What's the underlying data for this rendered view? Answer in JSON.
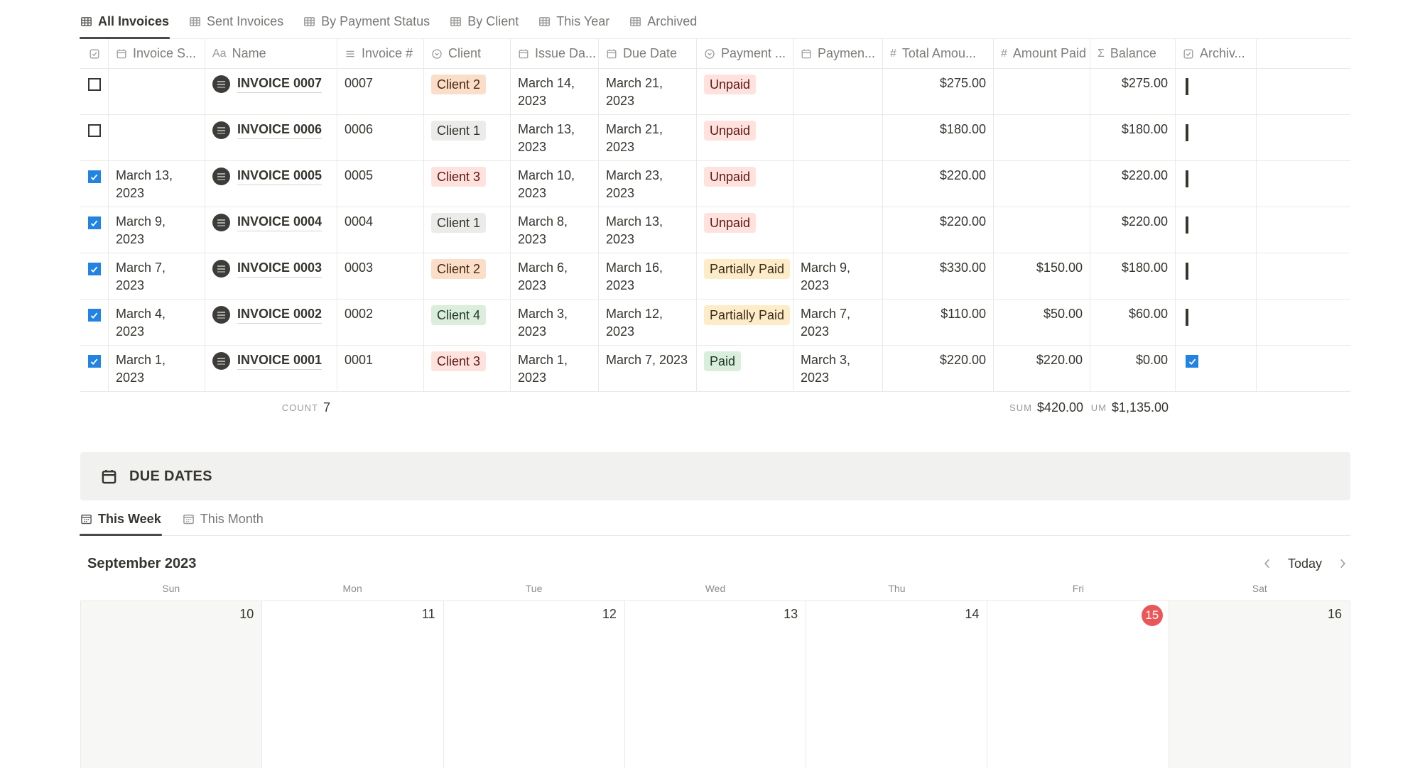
{
  "view_tabs": [
    {
      "label": "All Invoices",
      "active": true
    },
    {
      "label": "Sent Invoices",
      "active": false
    },
    {
      "label": "By Payment Status",
      "active": false
    },
    {
      "label": "By Client",
      "active": false
    },
    {
      "label": "This Year",
      "active": false
    },
    {
      "label": "Archived",
      "active": false
    }
  ],
  "table": {
    "header": {
      "invoice_sent": "Invoice S...",
      "name": "Name",
      "invoice_no": "Invoice #",
      "client": "Client",
      "issue_date": "Issue Da...",
      "due_date": "Due Date",
      "payment_status": "Payment ...",
      "payment_date": "Paymen...",
      "total": "Total Amou...",
      "amount_paid": "Amount Paid",
      "balance": "Balance",
      "archived": "Archiv..."
    },
    "rows": [
      {
        "selected": false,
        "invoice_sent": "",
        "name": "INVOICE 0007",
        "invoice_no": "0007",
        "client": "Client 2",
        "client_color": "orange",
        "issue_date": "March 14, 2023",
        "due_date": "March 21, 2023",
        "payment_status": "Unpaid",
        "status_color": "red",
        "payment_date": "",
        "total": "$275.00",
        "amount_paid": "",
        "balance": "$275.00",
        "archived": false
      },
      {
        "selected": false,
        "invoice_sent": "",
        "name": "INVOICE 0006",
        "invoice_no": "0006",
        "client": "Client 1",
        "client_color": "gray",
        "issue_date": "March 13, 2023",
        "due_date": "March 21, 2023",
        "payment_status": "Unpaid",
        "status_color": "red",
        "payment_date": "",
        "total": "$180.00",
        "amount_paid": "",
        "balance": "$180.00",
        "archived": false
      },
      {
        "selected": true,
        "invoice_sent": "March 13, 2023",
        "name": "INVOICE 0005",
        "invoice_no": "0005",
        "client": "Client 3",
        "client_color": "red",
        "issue_date": "March 10, 2023",
        "due_date": "March 23, 2023",
        "payment_status": "Unpaid",
        "status_color": "red",
        "payment_date": "",
        "total": "$220.00",
        "amount_paid": "",
        "balance": "$220.00",
        "archived": false
      },
      {
        "selected": true,
        "invoice_sent": "March 9, 2023",
        "name": "INVOICE 0004",
        "invoice_no": "0004",
        "client": "Client 1",
        "client_color": "gray",
        "issue_date": "March 8, 2023",
        "due_date": "March 13, 2023",
        "payment_status": "Unpaid",
        "status_color": "red",
        "payment_date": "",
        "total": "$220.00",
        "amount_paid": "",
        "balance": "$220.00",
        "archived": false
      },
      {
        "selected": true,
        "invoice_sent": "March 7, 2023",
        "name": "INVOICE 0003",
        "invoice_no": "0003",
        "client": "Client 2",
        "client_color": "orange",
        "issue_date": "March 6, 2023",
        "due_date": "March 16, 2023",
        "payment_status": "Partially Paid",
        "status_color": "yellow",
        "payment_date": "March 9, 2023",
        "total": "$330.00",
        "amount_paid": "$150.00",
        "balance": "$180.00",
        "archived": false
      },
      {
        "selected": true,
        "invoice_sent": "March 4, 2023",
        "name": "INVOICE 0002",
        "invoice_no": "0002",
        "client": "Client 4",
        "client_color": "green",
        "issue_date": "March 3, 2023",
        "due_date": "March 12, 2023",
        "payment_status": "Partially Paid",
        "status_color": "yellow",
        "payment_date": "March 7, 2023",
        "total": "$110.00",
        "amount_paid": "$50.00",
        "balance": "$60.00",
        "archived": false
      },
      {
        "selected": true,
        "invoice_sent": "March 1, 2023",
        "name": "INVOICE 0001",
        "invoice_no": "0001",
        "client": "Client 3",
        "client_color": "red",
        "issue_date": "March 1, 2023",
        "due_date": "March 7, 2023",
        "payment_status": "Paid",
        "status_color": "green",
        "payment_date": "March 3, 2023",
        "total": "$220.00",
        "amount_paid": "$220.00",
        "balance": "$0.00",
        "archived": true
      }
    ],
    "footer": {
      "count_label": "COUNT",
      "count_value": "7",
      "sum_paid_label": "SUM",
      "sum_paid_value": "$420.00",
      "sum_balance_label": "UM",
      "sum_balance_value": "$1,135.00"
    }
  },
  "due_dates": {
    "section_title": "DUE DATES",
    "tabs": [
      {
        "label": "This Week",
        "active": true
      },
      {
        "label": "This Month",
        "active": false
      }
    ],
    "calendar": {
      "month_title": "September 2023",
      "today_label": "Today",
      "weekdays": [
        "Sun",
        "Mon",
        "Tue",
        "Wed",
        "Thu",
        "Fri",
        "Sat"
      ],
      "days": [
        {
          "num": "10",
          "weekend": true,
          "today": false
        },
        {
          "num": "11",
          "weekend": false,
          "today": false
        },
        {
          "num": "12",
          "weekend": false,
          "today": false
        },
        {
          "num": "13",
          "weekend": false,
          "today": false
        },
        {
          "num": "14",
          "weekend": false,
          "today": false
        },
        {
          "num": "15",
          "weekend": false,
          "today": true
        },
        {
          "num": "16",
          "weekend": true,
          "today": false
        }
      ]
    }
  },
  "colors": {
    "checkbox_blue": "#2383e2",
    "today_red": "#eb5757",
    "tag_orange_bg": "#fadec9",
    "tag_red_bg": "#ffe2dd",
    "tag_green_bg": "#dbeddb",
    "tag_yellow_bg": "#fdecc8",
    "tag_gray_bg": "#e3e2e0",
    "border": "#e9e9e7",
    "text_primary": "#37352f",
    "text_gray": "#787774"
  }
}
